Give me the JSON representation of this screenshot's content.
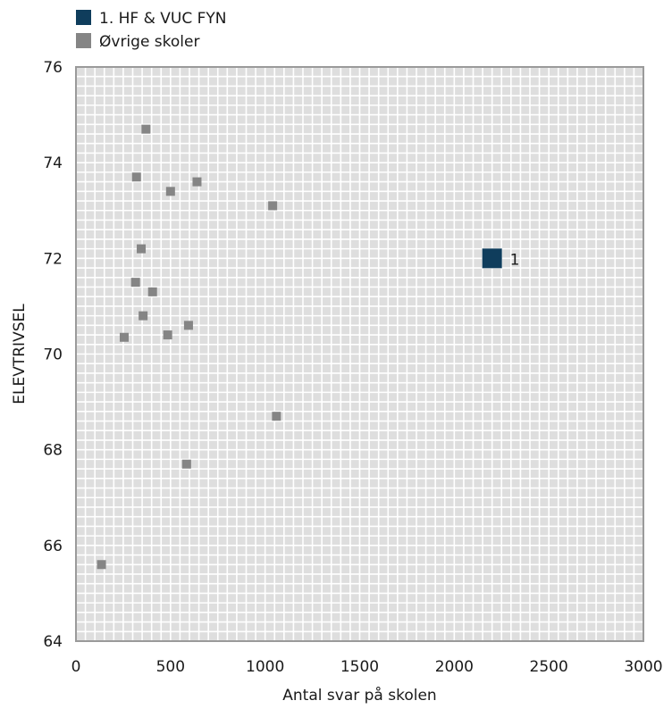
{
  "chart_data": {
    "type": "scatter",
    "title": "",
    "xlabel": "Antal svar på skolen",
    "ylabel": "ELEVTRIVSEL",
    "xlim": [
      0,
      3000
    ],
    "ylim": [
      64,
      76
    ],
    "x_ticks": [
      0,
      500,
      1000,
      1500,
      2000,
      2500,
      3000
    ],
    "y_ticks": [
      64,
      66,
      68,
      70,
      72,
      74,
      76
    ],
    "grid": true,
    "legend_position": "top-left",
    "series": [
      {
        "name": "1. HF & VUC FYN",
        "color": "#0f3d5c",
        "marker_size": "large",
        "points": [
          {
            "x": 2200,
            "y": 72.0,
            "label": "1"
          }
        ]
      },
      {
        "name": "Øvrige skoler",
        "color": "#858585",
        "marker_size": "small",
        "points": [
          {
            "x": 370,
            "y": 74.7
          },
          {
            "x": 320,
            "y": 73.7
          },
          {
            "x": 500,
            "y": 73.4
          },
          {
            "x": 640,
            "y": 73.6
          },
          {
            "x": 1040,
            "y": 73.1
          },
          {
            "x": 345,
            "y": 72.2
          },
          {
            "x": 315,
            "y": 71.5
          },
          {
            "x": 405,
            "y": 71.3
          },
          {
            "x": 355,
            "y": 70.8
          },
          {
            "x": 595,
            "y": 70.6
          },
          {
            "x": 485,
            "y": 70.4
          },
          {
            "x": 255,
            "y": 70.35
          },
          {
            "x": 1060,
            "y": 68.7
          },
          {
            "x": 585,
            "y": 67.7
          },
          {
            "x": 135,
            "y": 65.6
          }
        ]
      }
    ]
  }
}
